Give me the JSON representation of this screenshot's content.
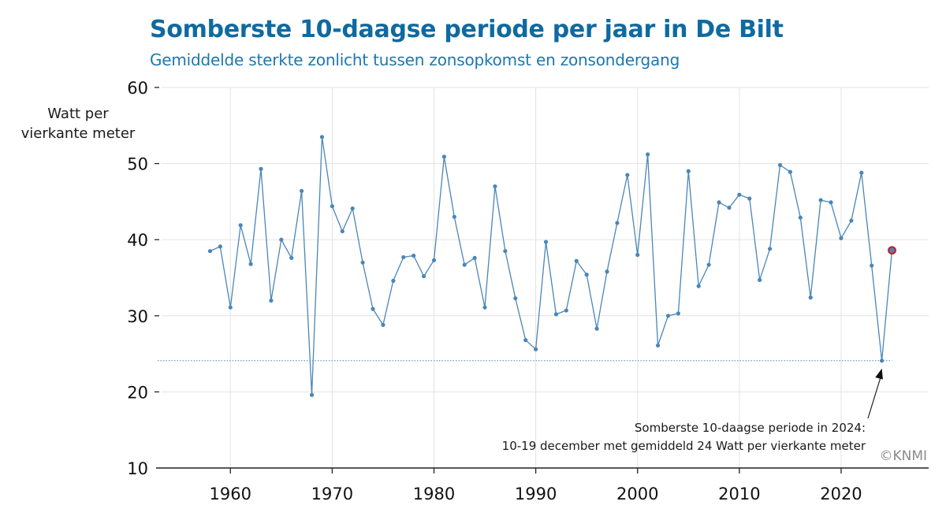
{
  "chart_data": {
    "type": "line",
    "title": "Somberste 10-daagse periode per jaar in De Bilt",
    "subtitle": "Gemiddelde sterkte zonlicht tussen zonsopkomst en zonsondergang",
    "ylabel_lines": [
      "Watt per",
      "vierkante meter"
    ],
    "xlabel": "",
    "xlim": [
      1952.7,
      2028.6
    ],
    "ylim": [
      10,
      60
    ],
    "xticks": [
      1960,
      1970,
      1980,
      1990,
      2000,
      2010,
      2020
    ],
    "yticks": [
      10,
      20,
      30,
      40,
      50,
      60
    ],
    "grid": true,
    "series": [
      {
        "name": "Somberste 10-daagse periode",
        "color": "#4a86b8",
        "x": [
          1958,
          1959,
          1960,
          1961,
          1962,
          1963,
          1964,
          1965,
          1966,
          1967,
          1968,
          1969,
          1970,
          1971,
          1972,
          1973,
          1974,
          1975,
          1976,
          1977,
          1978,
          1979,
          1980,
          1981,
          1982,
          1983,
          1984,
          1985,
          1986,
          1987,
          1988,
          1989,
          1990,
          1991,
          1992,
          1993,
          1994,
          1995,
          1996,
          1997,
          1998,
          1999,
          2000,
          2001,
          2002,
          2003,
          2004,
          2005,
          2006,
          2007,
          2008,
          2009,
          2010,
          2011,
          2012,
          2013,
          2014,
          2015,
          2016,
          2017,
          2018,
          2019,
          2020,
          2021,
          2022,
          2023,
          2024,
          2025
        ],
        "y": [
          38.5,
          39.1,
          31.1,
          41.9,
          36.8,
          49.3,
          32.0,
          40.0,
          37.6,
          46.4,
          19.6,
          53.5,
          44.4,
          41.1,
          44.1,
          37.0,
          30.9,
          28.8,
          34.6,
          37.7,
          37.9,
          35.2,
          37.3,
          50.9,
          43.0,
          36.7,
          37.6,
          31.1,
          47.0,
          38.5,
          32.3,
          26.8,
          25.6,
          39.7,
          30.2,
          30.7,
          37.2,
          35.4,
          28.3,
          35.8,
          42.2,
          48.5,
          38.0,
          51.2,
          26.1,
          30.0,
          30.3,
          49.0,
          33.9,
          36.7,
          44.9,
          44.2,
          45.9,
          45.4,
          34.7,
          38.8,
          49.8,
          48.9,
          42.9,
          32.4,
          45.2,
          44.9,
          40.2,
          42.5,
          48.8,
          36.6,
          24.1,
          38.6
        ]
      }
    ],
    "highlight": {
      "x": 2025,
      "y": 38.6,
      "color": "#c0202e"
    },
    "reference_line": {
      "y": 24.1,
      "style": "dotted",
      "color": "#4a86b8"
    },
    "annotation": {
      "lines": [
        "Somberste 10-daagse periode in 2024:",
        "10-19 december met gemiddeld 24 Watt per vierkante meter"
      ],
      "points_to": {
        "x": 2024,
        "y": 24.1
      }
    },
    "credit": "©KNMI"
  }
}
